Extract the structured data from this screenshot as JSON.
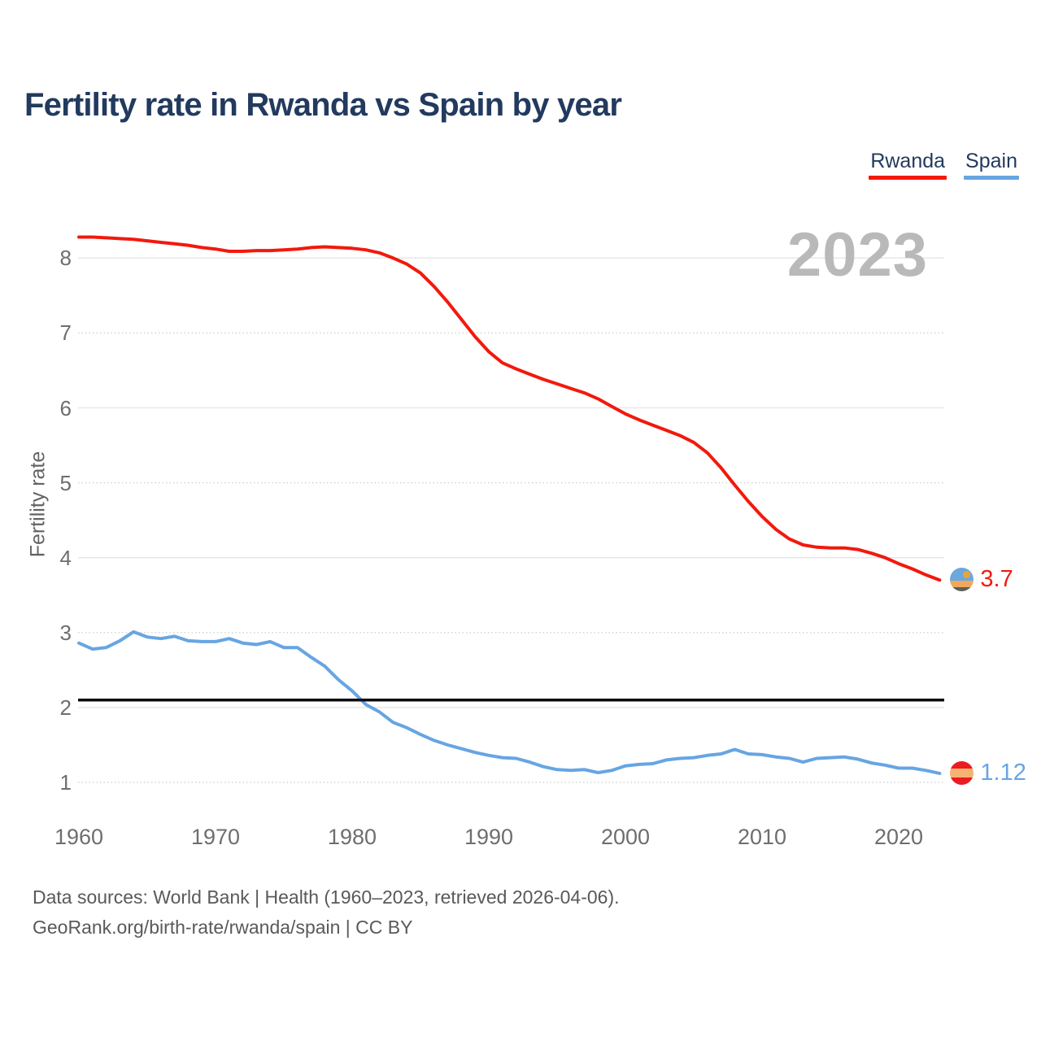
{
  "title": "Fertility rate in Rwanda vs Spain by year",
  "watermark": {
    "text": "2023"
  },
  "legend": [
    {
      "label": "Rwanda",
      "color": "#f2190d"
    },
    {
      "label": "Spain",
      "color": "#67a5e3"
    }
  ],
  "footer": {
    "line1": "Data sources: World Bank | Health (1960–2023, retrieved 2026-04-06).",
    "line2": "GeoRank.org/birth-rate/rwanda/spain | CC BY"
  },
  "flags": {
    "rwanda": {
      "top": "#6aa8dd",
      "middle": "#f0a85c",
      "bottom": "#5d6156",
      "sun": "#e9a33c"
    },
    "spain": {
      "top": "#ea1c22",
      "middle": "#f6b271",
      "bottom": "#ea1c22"
    }
  },
  "chart_data": {
    "type": "line",
    "title": "Fertility rate in Rwanda vs Spain by year",
    "xlabel": "",
    "ylabel": "Fertility rate",
    "xlim": [
      1960,
      2023
    ],
    "ylim": [
      1,
      8.4
    ],
    "x_ticks": [
      1960,
      1970,
      1980,
      1990,
      2000,
      2010,
      2020
    ],
    "y_ticks": [
      1,
      2,
      3,
      4,
      5,
      6,
      7,
      8
    ],
    "grid": true,
    "legend_position": "top-right",
    "reference_line": {
      "value": 2.1,
      "color": "#0a0a0a"
    },
    "x": [
      1960,
      1961,
      1962,
      1963,
      1964,
      1965,
      1966,
      1967,
      1968,
      1969,
      1970,
      1971,
      1972,
      1973,
      1974,
      1975,
      1976,
      1977,
      1978,
      1979,
      1980,
      1981,
      1982,
      1983,
      1984,
      1985,
      1986,
      1987,
      1988,
      1989,
      1990,
      1991,
      1992,
      1993,
      1994,
      1995,
      1996,
      1997,
      1998,
      1999,
      2000,
      2001,
      2002,
      2003,
      2004,
      2005,
      2006,
      2007,
      2008,
      2009,
      2010,
      2011,
      2012,
      2013,
      2014,
      2015,
      2016,
      2017,
      2018,
      2019,
      2020,
      2021,
      2022,
      2023
    ],
    "series": [
      {
        "name": "Rwanda",
        "color": "#f2190d",
        "end_label": "3.7",
        "values": [
          8.28,
          8.28,
          8.27,
          8.26,
          8.25,
          8.23,
          8.21,
          8.19,
          8.17,
          8.14,
          8.12,
          8.09,
          8.09,
          8.1,
          8.1,
          8.11,
          8.12,
          8.14,
          8.15,
          8.14,
          8.13,
          8.11,
          8.07,
          8.0,
          7.92,
          7.8,
          7.62,
          7.41,
          7.18,
          6.95,
          6.75,
          6.6,
          6.52,
          6.45,
          6.38,
          6.32,
          6.26,
          6.2,
          6.12,
          6.02,
          5.92,
          5.84,
          5.77,
          5.7,
          5.63,
          5.54,
          5.4,
          5.2,
          4.97,
          4.75,
          4.55,
          4.38,
          4.25,
          4.17,
          4.14,
          4.13,
          4.13,
          4.11,
          4.06,
          4.0,
          3.92,
          3.85,
          3.77,
          3.7
        ]
      },
      {
        "name": "Spain",
        "color": "#67a5e3",
        "end_label": "1.12",
        "values": [
          2.86,
          2.78,
          2.8,
          2.89,
          3.01,
          2.94,
          2.92,
          2.95,
          2.89,
          2.88,
          2.88,
          2.92,
          2.86,
          2.84,
          2.88,
          2.8,
          2.8,
          2.67,
          2.55,
          2.37,
          2.22,
          2.04,
          1.94,
          1.8,
          1.73,
          1.64,
          1.56,
          1.5,
          1.45,
          1.4,
          1.36,
          1.33,
          1.32,
          1.27,
          1.21,
          1.17,
          1.16,
          1.17,
          1.13,
          1.16,
          1.22,
          1.24,
          1.25,
          1.3,
          1.32,
          1.33,
          1.36,
          1.38,
          1.44,
          1.38,
          1.37,
          1.34,
          1.32,
          1.27,
          1.32,
          1.33,
          1.34,
          1.31,
          1.26,
          1.23,
          1.19,
          1.19,
          1.16,
          1.12
        ]
      }
    ]
  }
}
